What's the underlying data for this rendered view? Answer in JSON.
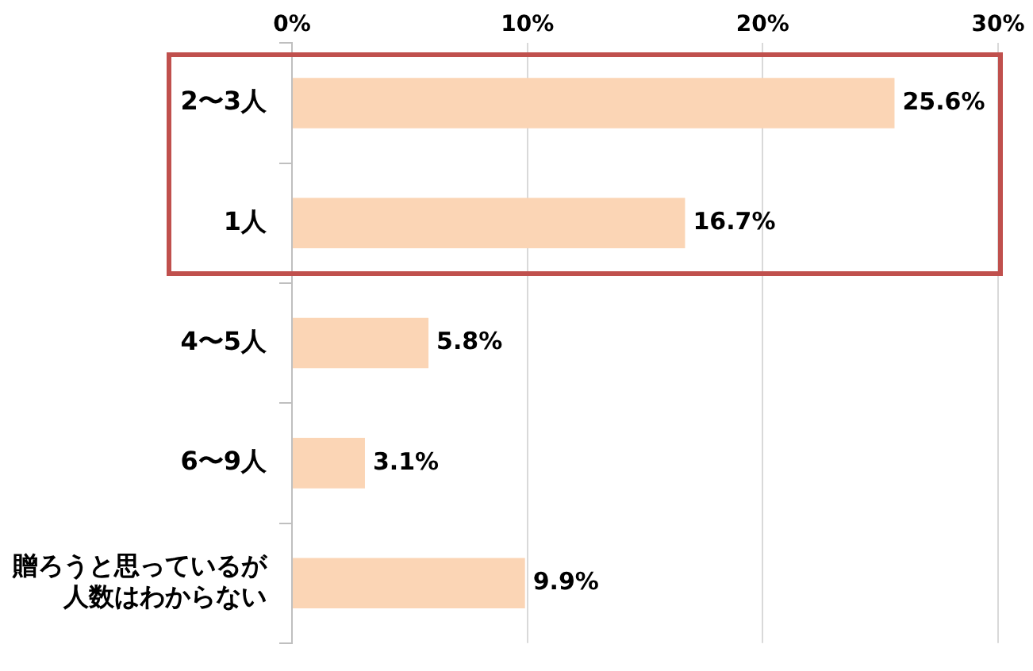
{
  "chart_data": {
    "type": "bar",
    "orientation": "horizontal",
    "categories": [
      "2〜3人",
      "1人",
      "4〜5人",
      "6〜9人",
      "贈ろうと思っているが人数はわからない"
    ],
    "values": [
      25.6,
      16.7,
      5.8,
      3.1,
      9.9
    ],
    "value_labels": [
      "25.6%",
      "16.7%",
      "5.8%",
      "3.1%",
      "9.9%"
    ],
    "color": "#fbd5b5",
    "xlim": [
      0,
      30
    ],
    "xticks": [
      {
        "value": 0,
        "label": "0%"
      },
      {
        "value": 10,
        "label": "10%"
      },
      {
        "value": 20,
        "label": "20%"
      },
      {
        "value": 30,
        "label": "30%"
      }
    ],
    "grid": "x",
    "legend": false
  }
}
